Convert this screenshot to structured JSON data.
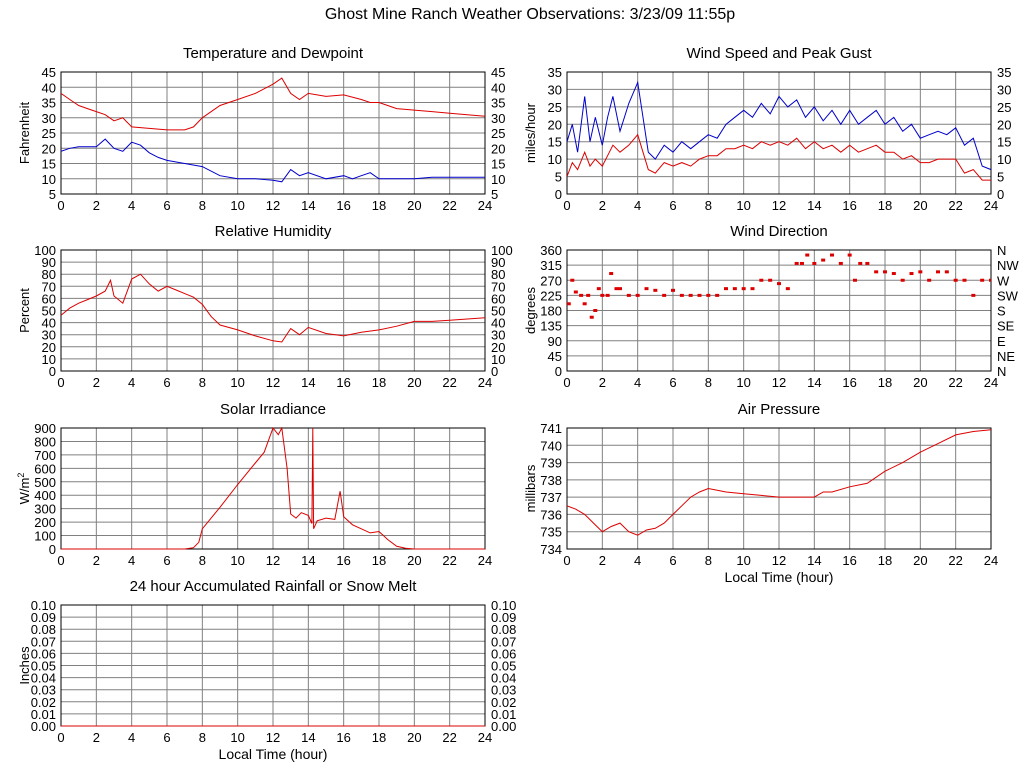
{
  "page": {
    "title": "Ghost Mine Ranch Weather Observations: 3/23/09 11:55p"
  },
  "colors": {
    "red": "#dd0000",
    "blue": "#0000cc",
    "grid": "#808080",
    "axis": "#000000"
  },
  "chart_data": [
    {
      "id": "temp",
      "type": "line",
      "title": "Temperature and Dewpoint",
      "ylabel": "Fahrenheit",
      "xlabel": "",
      "xlim": [
        0,
        24
      ],
      "ylim": [
        5,
        45
      ],
      "xticks": [
        0,
        2,
        4,
        6,
        8,
        10,
        12,
        14,
        16,
        18,
        20,
        22,
        24
      ],
      "yticks": [
        5,
        10,
        15,
        20,
        25,
        30,
        35,
        40,
        45
      ],
      "right_axis": true,
      "grid": true,
      "series": [
        {
          "name": "",
          "color": "#dd0000",
          "x": [
            0,
            0.5,
            1,
            1.5,
            2,
            2.5,
            3,
            3.5,
            4,
            5,
            6,
            7,
            7.5,
            8,
            9,
            10,
            11,
            12,
            12.5,
            13,
            13.5,
            14,
            15,
            16,
            17,
            17.5,
            18,
            19,
            20,
            21,
            22,
            23,
            24
          ],
          "y": [
            38,
            36,
            34,
            33,
            32,
            31,
            29,
            30,
            27,
            26.5,
            26,
            26,
            27,
            30,
            34,
            36,
            38,
            41,
            43,
            38,
            36,
            38,
            37,
            37.5,
            36,
            35,
            35,
            33,
            32.5,
            32,
            31.5,
            31,
            30.5
          ]
        },
        {
          "name": "",
          "color": "#0000cc",
          "x": [
            0,
            0.5,
            1,
            1.5,
            2,
            2.5,
            3,
            3.5,
            4,
            4.5,
            5,
            5.5,
            6,
            7,
            8,
            9,
            10,
            11,
            12,
            12.5,
            13,
            13.5,
            14,
            15,
            16,
            16.5,
            17,
            17.5,
            18,
            19,
            20,
            21,
            22,
            23,
            24
          ],
          "y": [
            19,
            20,
            20.5,
            20.5,
            20.5,
            23,
            20,
            19,
            22,
            21,
            18.5,
            17,
            16,
            15,
            14,
            11,
            10,
            10,
            9.5,
            9,
            13,
            11,
            12,
            10,
            11,
            10,
            11,
            12,
            10,
            10,
            10,
            10.5,
            10.5,
            10.5,
            10.5
          ]
        }
      ]
    },
    {
      "id": "wind",
      "type": "line",
      "title": "Wind Speed and Peak Gust",
      "ylabel": "miles/hour",
      "xlabel": "",
      "xlim": [
        0,
        24
      ],
      "ylim": [
        0,
        35
      ],
      "xticks": [
        0,
        2,
        4,
        6,
        8,
        10,
        12,
        14,
        16,
        18,
        20,
        22,
        24
      ],
      "yticks": [
        0,
        5,
        10,
        15,
        20,
        25,
        30,
        35
      ],
      "right_axis": true,
      "grid": true,
      "series": [
        {
          "name": "",
          "color": "#0000cc",
          "x": [
            0,
            0.3,
            0.6,
            1,
            1.3,
            1.6,
            2,
            2.3,
            2.6,
            3,
            3.5,
            4,
            4.3,
            4.6,
            5,
            5.5,
            6,
            6.5,
            7,
            7.5,
            8,
            8.5,
            9,
            9.5,
            10,
            10.5,
            11,
            11.5,
            12,
            12.5,
            13,
            13.5,
            14,
            14.5,
            15,
            15.5,
            16,
            16.5,
            17,
            17.5,
            18,
            18.5,
            19,
            19.5,
            20,
            20.5,
            21,
            21.5,
            22,
            22.5,
            23,
            23.5,
            24
          ],
          "y": [
            15,
            20,
            12,
            28,
            15,
            22,
            14,
            22,
            28,
            18,
            26,
            32,
            22,
            12,
            10,
            14,
            12,
            15,
            13,
            15,
            17,
            16,
            20,
            22,
            24,
            22,
            26,
            23,
            28,
            25,
            27,
            22,
            25,
            21,
            24,
            20,
            24,
            20,
            22,
            24,
            20,
            22,
            18,
            20,
            16,
            17,
            18,
            17,
            19,
            14,
            16,
            8,
            7
          ]
        },
        {
          "name": "",
          "color": "#dd0000",
          "x": [
            0,
            0.3,
            0.6,
            1,
            1.3,
            1.6,
            2,
            2.3,
            2.6,
            3,
            3.5,
            4,
            4.3,
            4.6,
            5,
            5.5,
            6,
            6.5,
            7,
            7.5,
            8,
            8.5,
            9,
            9.5,
            10,
            10.5,
            11,
            11.5,
            12,
            12.5,
            13,
            13.5,
            14,
            14.5,
            15,
            15.5,
            16,
            16.5,
            17,
            17.5,
            18,
            18.5,
            19,
            19.5,
            20,
            20.5,
            21,
            21.5,
            22,
            22.5,
            23,
            23.5,
            24
          ],
          "y": [
            5,
            9,
            7,
            12,
            8,
            10,
            8,
            11,
            14,
            12,
            14,
            17,
            12,
            7,
            6,
            9,
            8,
            9,
            8,
            10,
            11,
            11,
            13,
            13,
            14,
            13,
            15,
            14,
            15,
            14,
            16,
            13,
            15,
            13,
            14,
            12,
            14,
            12,
            13,
            14,
            12,
            12,
            10,
            11,
            9,
            9,
            10,
            10,
            10,
            6,
            7,
            4,
            4
          ]
        }
      ]
    },
    {
      "id": "humidity",
      "type": "line",
      "title": "Relative Humidity",
      "ylabel": "Percent",
      "xlabel": "",
      "xlim": [
        0,
        24
      ],
      "ylim": [
        0,
        100
      ],
      "xticks": [
        0,
        2,
        4,
        6,
        8,
        10,
        12,
        14,
        16,
        18,
        20,
        22,
        24
      ],
      "yticks": [
        0,
        10,
        20,
        30,
        40,
        50,
        60,
        70,
        80,
        90,
        100
      ],
      "right_axis": true,
      "grid": true,
      "series": [
        {
          "name": "",
          "color": "#dd0000",
          "x": [
            0,
            0.5,
            1,
            1.5,
            2,
            2.5,
            2.8,
            3,
            3.5,
            4,
            4.5,
            5,
            5.5,
            6,
            6.5,
            7,
            7.5,
            8,
            8.5,
            9,
            10,
            11,
            12,
            12.5,
            13,
            13.5,
            14,
            15,
            16,
            17,
            18,
            19,
            20,
            21,
            22,
            23,
            24
          ],
          "y": [
            46,
            52,
            56,
            59,
            62,
            66,
            75,
            62,
            56,
            76,
            80,
            72,
            66,
            70,
            67,
            64,
            61,
            55,
            45,
            38,
            34,
            29,
            25,
            24,
            35,
            30,
            36,
            31,
            29,
            32,
            34,
            37,
            41,
            41,
            42,
            43,
            44
          ]
        }
      ]
    },
    {
      "id": "winddir",
      "type": "scatter",
      "title": "Wind Direction",
      "ylabel": "degrees",
      "xlabel": "",
      "xlim": [
        0,
        24
      ],
      "ylim": [
        0,
        360
      ],
      "xticks": [
        0,
        2,
        4,
        6,
        8,
        10,
        12,
        14,
        16,
        18,
        20,
        22,
        24
      ],
      "yticks": [
        0,
        45,
        90,
        135,
        180,
        225,
        270,
        315,
        360
      ],
      "right_labels": [
        "N",
        "NE",
        "E",
        "SE",
        "S",
        "SW",
        "W",
        "NW",
        "N"
      ],
      "grid": true,
      "series": [
        {
          "name": "",
          "color": "#dd0000",
          "x": [
            0.1,
            0.3,
            0.5,
            0.8,
            1.0,
            1.2,
            1.4,
            1.6,
            1.8,
            2.0,
            2.3,
            2.5,
            2.8,
            3.0,
            3.5,
            4.0,
            4.5,
            5.0,
            5.5,
            6.0,
            6.5,
            7.0,
            7.5,
            8.0,
            8.5,
            9.0,
            9.5,
            10.0,
            10.5,
            11.0,
            11.5,
            12.0,
            12.5,
            13.0,
            13.3,
            13.6,
            14.0,
            14.5,
            15.0,
            15.5,
            16.0,
            16.3,
            16.6,
            17.0,
            17.5,
            18.0,
            18.5,
            19.0,
            19.5,
            20.0,
            20.5,
            21.0,
            21.5,
            22.0,
            22.5,
            23.0,
            23.5,
            24.0
          ],
          "y": [
            200,
            270,
            235,
            225,
            200,
            225,
            160,
            180,
            245,
            225,
            225,
            290,
            245,
            245,
            225,
            225,
            245,
            240,
            225,
            240,
            225,
            225,
            225,
            225,
            225,
            245,
            245,
            245,
            245,
            270,
            270,
            260,
            245,
            320,
            320,
            345,
            320,
            330,
            345,
            320,
            345,
            270,
            320,
            320,
            295,
            295,
            290,
            270,
            290,
            295,
            270,
            295,
            295,
            270,
            270,
            225,
            270,
            270
          ]
        }
      ]
    },
    {
      "id": "solar",
      "type": "line",
      "title": "Solar Irradiance",
      "ylabel": "W/m",
      "ylabel_sup": "2",
      "xlabel": "",
      "xlim": [
        0,
        24
      ],
      "ylim": [
        0,
        900
      ],
      "xticks": [
        0,
        2,
        4,
        6,
        8,
        10,
        12,
        14,
        16,
        18,
        20,
        22,
        24
      ],
      "yticks": [
        0,
        100,
        200,
        300,
        400,
        500,
        600,
        700,
        800,
        900
      ],
      "right_axis": false,
      "grid": true,
      "series": [
        {
          "name": "",
          "color": "#dd0000",
          "x": [
            0,
            7.0,
            7.5,
            7.8,
            8,
            9,
            10,
            11,
            11.5,
            12,
            12.3,
            12.5,
            12.8,
            13,
            13.3,
            13.6,
            14,
            14.2,
            14.25,
            14.3,
            14.5,
            15,
            15.5,
            15.8,
            16,
            16.5,
            17,
            17.5,
            18,
            18.5,
            19,
            19.5,
            20,
            24
          ],
          "y": [
            0,
            0,
            10,
            50,
            150,
            310,
            480,
            640,
            720,
            900,
            850,
            900,
            600,
            260,
            230,
            270,
            250,
            190,
            900,
            150,
            210,
            230,
            220,
            430,
            240,
            180,
            150,
            120,
            130,
            70,
            20,
            5,
            0,
            0
          ]
        }
      ]
    },
    {
      "id": "pressure",
      "type": "line",
      "title": "Air Pressure",
      "ylabel": "millibars",
      "xlabel": "Local Time (hour)",
      "xlim": [
        0,
        24
      ],
      "ylim": [
        734,
        741
      ],
      "xticks": [
        0,
        2,
        4,
        6,
        8,
        10,
        12,
        14,
        16,
        18,
        20,
        22,
        24
      ],
      "yticks": [
        734,
        735,
        736,
        737,
        738,
        739,
        740,
        741
      ],
      "right_axis": false,
      "grid": true,
      "series": [
        {
          "name": "",
          "color": "#dd0000",
          "x": [
            0,
            0.5,
            1,
            1.5,
            2,
            2.5,
            3,
            3.5,
            4,
            4.5,
            5,
            5.5,
            6,
            6.5,
            7,
            7.5,
            8,
            8.5,
            9,
            10,
            11,
            12,
            13,
            14,
            14.5,
            15,
            16,
            17,
            18,
            19,
            20,
            21,
            22,
            23,
            24
          ],
          "y": [
            736.5,
            736.3,
            736,
            735.5,
            735,
            735.3,
            735.5,
            735,
            734.8,
            735.1,
            735.2,
            735.5,
            736.0,
            736.5,
            737.0,
            737.3,
            737.5,
            737.4,
            737.3,
            737.2,
            737.1,
            737.0,
            737.0,
            737.0,
            737.3,
            737.3,
            737.6,
            737.8,
            738.5,
            739.0,
            739.6,
            740.1,
            740.6,
            740.8,
            740.9
          ]
        }
      ]
    },
    {
      "id": "rain",
      "type": "line",
      "title": "24 hour Accumulated Rainfall or Snow Melt",
      "ylabel": "Inches",
      "xlabel": "Local Time (hour)",
      "xlim": [
        0,
        24
      ],
      "ylim": [
        0,
        0.1
      ],
      "xticks": [
        0,
        2,
        4,
        6,
        8,
        10,
        12,
        14,
        16,
        18,
        20,
        22,
        24
      ],
      "yticks": [
        "0.00",
        "0.01",
        "0.02",
        "0.03",
        "0.04",
        "0.05",
        "0.06",
        "0.07",
        "0.08",
        "0.09",
        "0.10"
      ],
      "right_axis": true,
      "grid": true,
      "series": [
        {
          "name": "",
          "color": "#dd0000",
          "x": [
            0,
            24
          ],
          "y": [
            0,
            0
          ]
        }
      ]
    }
  ]
}
